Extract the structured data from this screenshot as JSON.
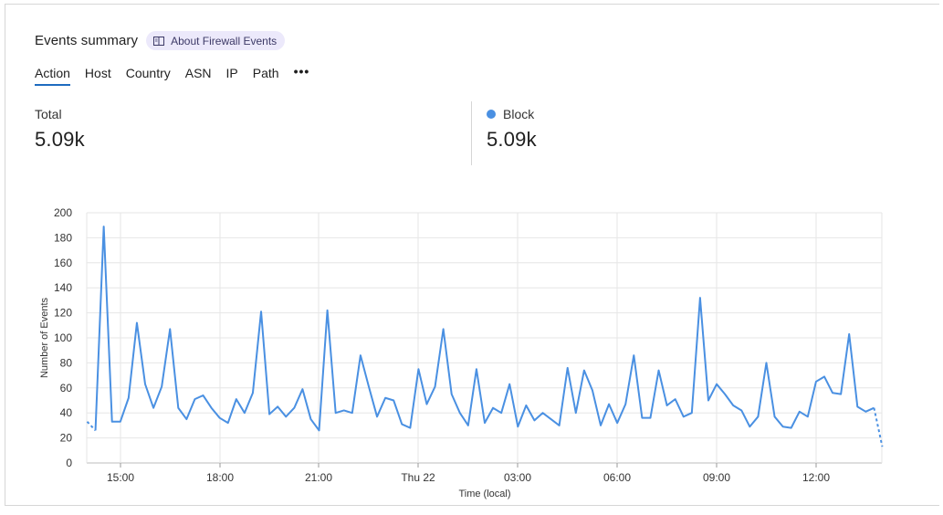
{
  "header": {
    "title": "Events summary",
    "about_label": "About Firewall Events"
  },
  "tabs": [
    {
      "label": "Action",
      "active": true
    },
    {
      "label": "Host",
      "active": false
    },
    {
      "label": "Country",
      "active": false
    },
    {
      "label": "ASN",
      "active": false
    },
    {
      "label": "IP",
      "active": false
    },
    {
      "label": "Path",
      "active": false
    }
  ],
  "more_label": "•••",
  "stats": {
    "total": {
      "label": "Total",
      "value": "5.09k"
    },
    "block": {
      "label": "Block",
      "value": "5.09k",
      "color": "#4a90e2"
    }
  },
  "chart_data": {
    "type": "line",
    "xlabel": "Time (local)",
    "ylabel": "Number of Events",
    "ylim": [
      0,
      200
    ],
    "yticks": [
      0,
      20,
      40,
      60,
      80,
      100,
      120,
      140,
      160,
      180,
      200
    ],
    "xticks": [
      "15:00",
      "18:00",
      "21:00",
      "Thu 22",
      "03:00",
      "06:00",
      "09:00",
      "12:00"
    ],
    "grid": true,
    "color": "#4a90e2",
    "series": [
      {
        "values": [
          33,
          26,
          189,
          33,
          33,
          52,
          112,
          63,
          44,
          61,
          107,
          44,
          35,
          51,
          54,
          44,
          36,
          32,
          51,
          40,
          56,
          121,
          39,
          45,
          37,
          44,
          59,
          35,
          26,
          122,
          40,
          42,
          40,
          86,
          61,
          37,
          52,
          50,
          31,
          28,
          75,
          47,
          61,
          107,
          55,
          40,
          30,
          75,
          32,
          44,
          40,
          63,
          29,
          46,
          34,
          40,
          35,
          30,
          76,
          40,
          74,
          58,
          30,
          47,
          32,
          47,
          86,
          36,
          36,
          74,
          46,
          51,
          37,
          40,
          132,
          50,
          63,
          55,
          46,
          42,
          29,
          37,
          80,
          37,
          29,
          28,
          41,
          37,
          65,
          69,
          56,
          55,
          103,
          45,
          41,
          44,
          13
        ],
        "dashed_segments": [
          [
            0,
            1
          ],
          [
            95,
            96
          ]
        ]
      }
    ]
  }
}
